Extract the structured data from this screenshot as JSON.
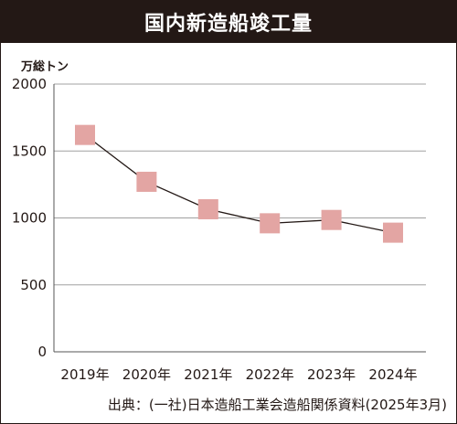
{
  "title": "国内新造船竣工量",
  "source": "出典：(一社)日本造船工業会造船関係資料(2025年3月)",
  "colors": {
    "header_bg": "#231815",
    "marker": "#E3A5A3",
    "line": "#231815",
    "grid": "#a0a0a0"
  },
  "chart_data": {
    "type": "line",
    "title": "国内新造船竣工量",
    "ylabel": "万総トン",
    "xlabel": "",
    "categories": [
      "2019年",
      "2020年",
      "2021年",
      "2022年",
      "2023年",
      "2024年"
    ],
    "series": [
      {
        "values": [
          1620,
          1270,
          1065,
          960,
          985,
          890
        ]
      }
    ],
    "ylim": [
      0,
      2000
    ],
    "yticks": [
      0,
      500,
      1000,
      1500,
      2000
    ],
    "grid": true,
    "marker": "square"
  }
}
